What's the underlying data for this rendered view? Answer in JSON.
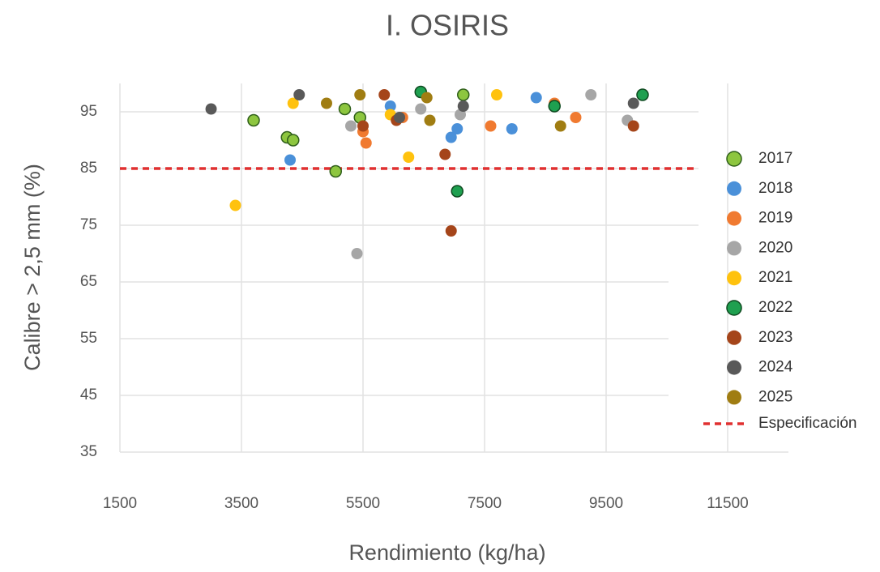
{
  "chart_data": {
    "type": "scatter",
    "title": "I. OSIRIS",
    "x_label": "Rendimiento (kg/ha)",
    "y_label": "Calibre  > 2,5 mm (%)",
    "xlim": [
      1500,
      12500
    ],
    "ylim": [
      35,
      100
    ],
    "xticks": [
      1500,
      3500,
      5500,
      7500,
      9500,
      11500
    ],
    "yticks": [
      35,
      45,
      55,
      65,
      75,
      85,
      95
    ],
    "grid": true,
    "legend": "right",
    "series": [
      {
        "name": "2017",
        "color": "#8dc63f",
        "outline": "#2f5f1a",
        "x": [
          3700,
          4250,
          4350,
          5200,
          5050,
          5450,
          7150
        ],
        "values": [
          93.5,
          90.5,
          90,
          95.5,
          84.5,
          94,
          98
        ]
      },
      {
        "name": "2018",
        "color": "#4a90d9",
        "x": [
          4300,
          5950,
          7050,
          6950,
          7950,
          8350
        ],
        "values": [
          86.5,
          96,
          92,
          90.5,
          92,
          97.5
        ]
      },
      {
        "name": "2019",
        "color": "#f07a30",
        "x": [
          5500,
          5550,
          7600,
          8650,
          9000,
          6150
        ],
        "values": [
          91.5,
          89.5,
          92.5,
          96.5,
          94,
          94
        ]
      },
      {
        "name": "2020",
        "color": "#a6a6a6",
        "x": [
          5300,
          5400,
          6450,
          7100,
          9250,
          9850
        ],
        "values": [
          92.5,
          70,
          95.5,
          94.5,
          98,
          93.5
        ]
      },
      {
        "name": "2021",
        "color": "#ffc20e",
        "x": [
          3400,
          4350,
          5950,
          6250,
          7700
        ],
        "values": [
          78.5,
          96.5,
          94.5,
          87,
          98
        ]
      },
      {
        "name": "2022",
        "color": "#1fa050",
        "outline": "#0e4a20",
        "x": [
          6450,
          7050,
          8650,
          10100
        ],
        "values": [
          98.5,
          81,
          96,
          98
        ]
      },
      {
        "name": "2023",
        "color": "#a5451a",
        "x": [
          5500,
          5850,
          6050,
          6850,
          6950,
          9950
        ],
        "values": [
          92.5,
          98,
          93.5,
          87.5,
          74,
          92.5
        ]
      },
      {
        "name": "2024",
        "color": "#595959",
        "x": [
          3000,
          4450,
          6100,
          7150,
          9950
        ],
        "values": [
          95.5,
          98,
          94,
          96,
          96.5
        ]
      },
      {
        "name": "2025",
        "color": "#a07d12",
        "x": [
          4900,
          5450,
          6550,
          6600,
          8750
        ],
        "values": [
          96.5,
          98,
          97.5,
          93.5,
          92.5
        ]
      }
    ],
    "spec": {
      "name": "Especificación",
      "value": 85,
      "color": "#e03030"
    }
  }
}
